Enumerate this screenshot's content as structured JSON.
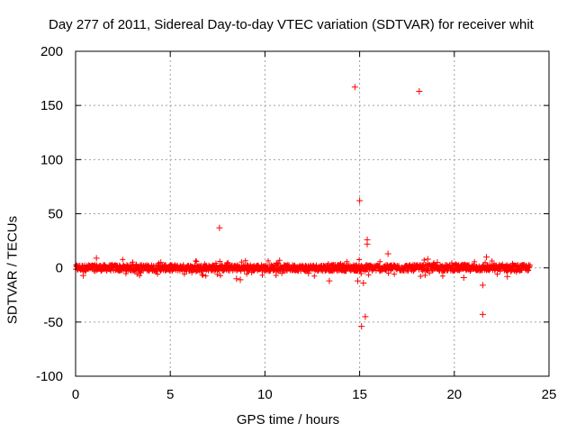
{
  "chart_data": {
    "type": "scatter",
    "title": "Day 277 of 2011, Sidereal Day-to-day VTEC variation (SDTVAR) for receiver whit",
    "xlabel": "GPS time / hours",
    "ylabel": "SDTVAR / TECUs",
    "xlim": [
      0,
      25
    ],
    "ylim": [
      -100,
      200
    ],
    "xticks": [
      0,
      5,
      10,
      15,
      20,
      25
    ],
    "yticks": [
      -100,
      -50,
      0,
      50,
      100,
      150,
      200
    ],
    "grid": true,
    "marker": "+",
    "series_color": "#ff0000",
    "dense_band": {
      "description": "continuous band of points near zero",
      "x_range": [
        0,
        24
      ],
      "y_center": 0,
      "y_halfwidth": 3
    },
    "outliers": [
      {
        "x": 14.75,
        "y": 167
      },
      {
        "x": 18.15,
        "y": 163
      },
      {
        "x": 15.0,
        "y": 62
      },
      {
        "x": 7.6,
        "y": 37
      },
      {
        "x": 15.4,
        "y": 26
      },
      {
        "x": 15.4,
        "y": 22
      },
      {
        "x": 16.5,
        "y": 13
      },
      {
        "x": 21.7,
        "y": 10
      },
      {
        "x": 1.1,
        "y": 9
      },
      {
        "x": 18.6,
        "y": 8
      },
      {
        "x": 13.4,
        "y": -12
      },
      {
        "x": 14.9,
        "y": -12
      },
      {
        "x": 15.2,
        "y": -14
      },
      {
        "x": 0.4,
        "y": -7
      },
      {
        "x": 8.5,
        "y": -10
      },
      {
        "x": 8.7,
        "y": -11
      },
      {
        "x": 20.5,
        "y": -9
      },
      {
        "x": 21.5,
        "y": -16
      },
      {
        "x": 21.5,
        "y": -43
      },
      {
        "x": 15.3,
        "y": -45
      },
      {
        "x": 15.1,
        "y": -54
      },
      {
        "x": 22.8,
        "y": -8
      },
      {
        "x": 12.3,
        "y": -5
      },
      {
        "x": 9.3,
        "y": -4
      },
      {
        "x": 4.5,
        "y": 5
      },
      {
        "x": 19.1,
        "y": 5
      }
    ]
  }
}
